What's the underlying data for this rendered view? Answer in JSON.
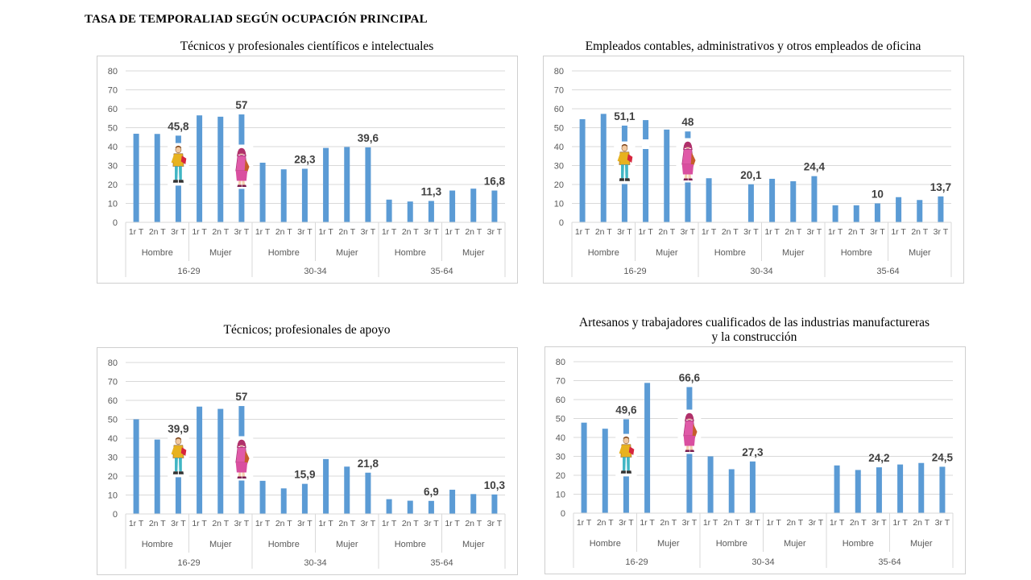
{
  "page_title": "TASA DE TEMPORALIAD SEGÚN OCUPACIÓN PRINCIPAL",
  "accent_color": "#5b9bd5",
  "figure_icons": [
    "man-figure-icon",
    "woman-figure-icon"
  ],
  "charts": [
    {
      "title_lines": [
        "Técnicos y profesionales científicos e intelectuales"
      ]
    },
    {
      "title_lines": [
        "Empleados contables, administrativos y otros empleados de oficina"
      ]
    },
    {
      "title_lines": [
        "Técnicos; profesionales de apoyo"
      ]
    },
    {
      "title_lines": [
        "Artesanos y trabajadores cualificados de las industrias manufactureras",
        "y la construcción"
      ]
    }
  ],
  "chart_data": [
    {
      "type": "bar",
      "title": "Técnicos y profesionales científicos e intelectuales",
      "ylim": [
        0,
        80
      ],
      "yticks": [
        0,
        10,
        20,
        30,
        40,
        50,
        60,
        70,
        80
      ],
      "grid": true,
      "quarters": [
        "1r T",
        "2n T",
        "3r T"
      ],
      "sexes": [
        "Hombre",
        "Mujer"
      ],
      "age_groups": [
        "16-29",
        "30-34",
        "35-64"
      ],
      "values": [
        46.8,
        46.7,
        45.8,
        56.5,
        55.8,
        57,
        31.5,
        28,
        28.3,
        39.3,
        39.8,
        39.6,
        12,
        11,
        11.3,
        16.8,
        17.8,
        16.8
      ],
      "data_labels": [
        null,
        null,
        "45,8",
        null,
        null,
        "57",
        null,
        null,
        "28,3",
        null,
        null,
        "39,6",
        null,
        null,
        "11,3",
        null,
        null,
        "16,8"
      ]
    },
    {
      "type": "bar",
      "title": "Empleados contables, administrativos y otros empleados de oficina",
      "ylim": [
        0,
        80
      ],
      "yticks": [
        0,
        10,
        20,
        30,
        40,
        50,
        60,
        70,
        80
      ],
      "grid": true,
      "quarters": [
        "1r T",
        "2n T",
        "3r T"
      ],
      "sexes": [
        "Hombre",
        "Mujer"
      ],
      "age_groups": [
        "16-29",
        "30-34",
        "35-64"
      ],
      "values": [
        54.5,
        57.3,
        51.1,
        54,
        49,
        48,
        23.3,
        null,
        20.1,
        23,
        21.7,
        24.4,
        9,
        9,
        10,
        13.3,
        11.8,
        13.7
      ],
      "data_labels": [
        null,
        null,
        "51,1",
        null,
        null,
        "48",
        null,
        null,
        "20,1",
        null,
        null,
        "24,4",
        null,
        null,
        "10",
        null,
        null,
        "13,7"
      ]
    },
    {
      "type": "bar",
      "title": "Técnicos; profesionales de apoyo",
      "ylim": [
        0,
        80
      ],
      "yticks": [
        0,
        10,
        20,
        30,
        40,
        50,
        60,
        70,
        80
      ],
      "grid": true,
      "quarters": [
        "1r T",
        "2n T",
        "3r T"
      ],
      "sexes": [
        "Hombre",
        "Mujer"
      ],
      "age_groups": [
        "16-29",
        "30-34",
        "35-64"
      ],
      "values": [
        50,
        39.3,
        39.9,
        56.7,
        55.5,
        57,
        17.5,
        13.5,
        15.9,
        29,
        25,
        21.8,
        7.8,
        7,
        6.9,
        12.8,
        10.5,
        10.3
      ],
      "data_labels": [
        null,
        null,
        "39,9",
        null,
        null,
        "57",
        null,
        null,
        "15,9",
        null,
        null,
        "21,8",
        null,
        null,
        "6,9",
        null,
        null,
        "10,3"
      ]
    },
    {
      "type": "bar",
      "title": "Artesanos y trabajadores cualificados de las industrias manufactureras y la construcción",
      "ylim": [
        0,
        80
      ],
      "yticks": [
        0,
        10,
        20,
        30,
        40,
        50,
        60,
        70,
        80
      ],
      "grid": true,
      "quarters": [
        "1r T",
        "2n T",
        "3r T"
      ],
      "sexes": [
        "Hombre",
        "Mujer"
      ],
      "age_groups": [
        "16-29",
        "30-34",
        "35-64"
      ],
      "values": [
        47.8,
        44.6,
        49.6,
        68.8,
        null,
        66.6,
        30,
        23.2,
        27.3,
        null,
        null,
        null,
        25.2,
        22.8,
        24.2,
        25.7,
        26.5,
        24.5
      ],
      "data_labels": [
        null,
        null,
        "49,6",
        null,
        null,
        "66,6",
        null,
        null,
        "27,3",
        null,
        null,
        null,
        null,
        null,
        "24,2",
        null,
        null,
        "24,5"
      ]
    }
  ]
}
